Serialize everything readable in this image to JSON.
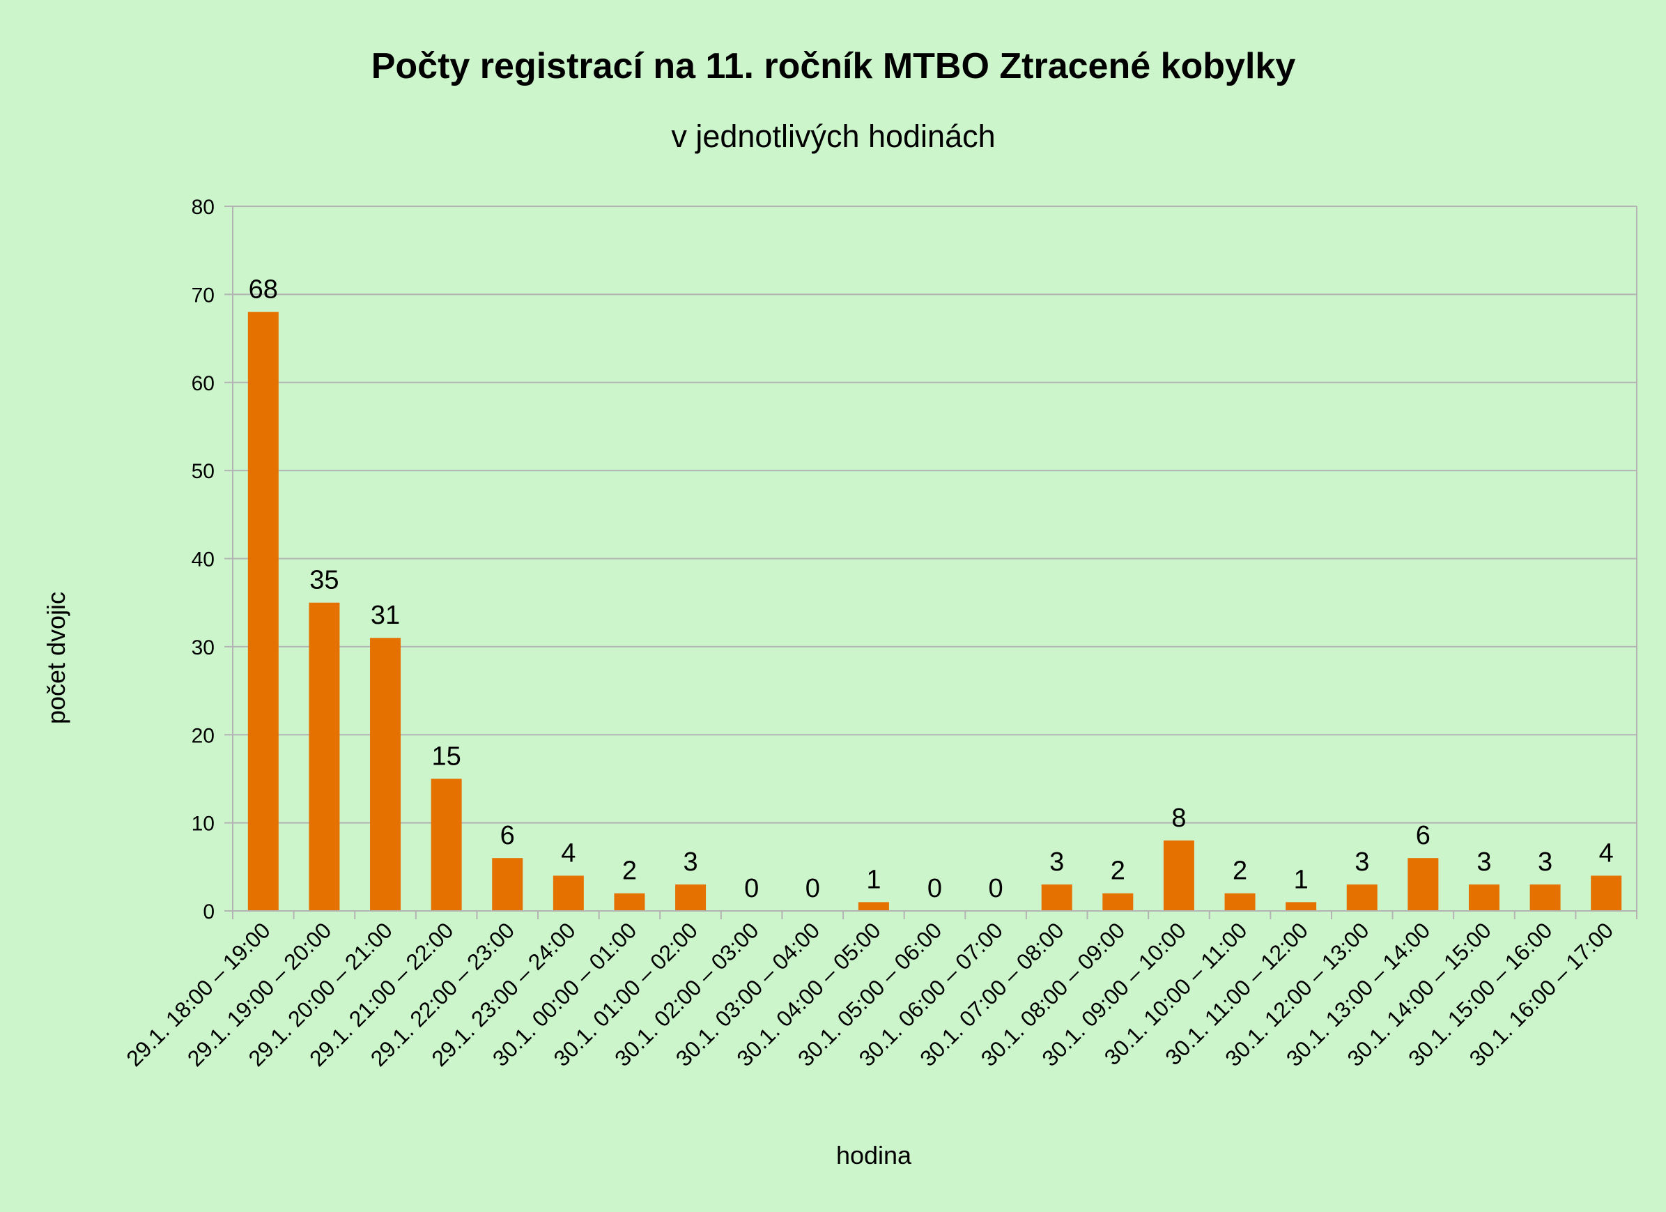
{
  "chart_data": {
    "type": "bar",
    "title": "Počty registrací na 11. ročník MTBO Ztracené kobylky",
    "subtitle": "v jednotlivých hodinách",
    "xlabel": "hodina",
    "ylabel": "počet dvojic",
    "ylim": [
      0,
      80
    ],
    "yticks": [
      0,
      10,
      20,
      30,
      40,
      50,
      60,
      70,
      80
    ],
    "grid": true,
    "legend": "none",
    "categories": [
      "29.1. 18:00 – 19:00",
      "29.1. 19:00 – 20:00",
      "29.1. 20:00 – 21:00",
      "29.1. 21:00 – 22:00",
      "29.1. 22:00 – 23:00",
      "29.1. 23:00 – 24:00",
      "30.1. 00:00 – 01:00",
      "30.1. 01:00 – 02:00",
      "30.1. 02:00 – 03:00",
      "30.1. 03:00 – 04:00",
      "30.1. 04:00 – 05:00",
      "30.1. 05:00 – 06:00",
      "30.1. 06:00 – 07:00",
      "30.1. 07:00 – 08:00",
      "30.1. 08:00 – 09:00",
      "30.1. 09:00 – 10:00",
      "30.1. 10:00 – 11:00",
      "30.1. 11:00 – 12:00",
      "30.1. 12:00 – 13:00",
      "30.1. 13:00 – 14:00",
      "30.1. 14:00 – 15:00",
      "30.1. 15:00 – 16:00",
      "30.1. 16:00 – 17:00"
    ],
    "values": [
      68,
      35,
      31,
      15,
      6,
      4,
      2,
      3,
      0,
      0,
      1,
      0,
      0,
      3,
      2,
      8,
      2,
      1,
      3,
      6,
      3,
      3,
      4
    ],
    "bar_color": "#e57200",
    "grid_color": "#b3b3b3",
    "background_color": "#ccf5cc"
  }
}
